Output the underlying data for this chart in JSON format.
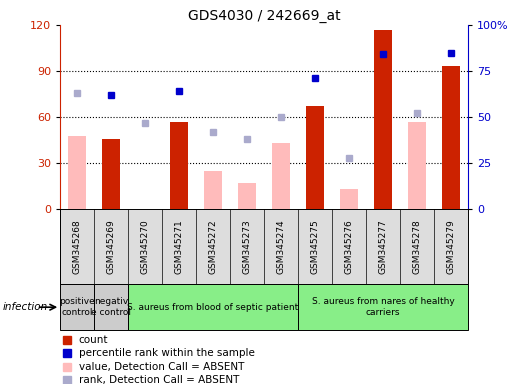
{
  "title": "GDS4030 / 242669_at",
  "samples": [
    "GSM345268",
    "GSM345269",
    "GSM345270",
    "GSM345271",
    "GSM345272",
    "GSM345273",
    "GSM345274",
    "GSM345275",
    "GSM345276",
    "GSM345277",
    "GSM345278",
    "GSM345279"
  ],
  "count_values": [
    null,
    46,
    null,
    57,
    null,
    null,
    null,
    67,
    null,
    117,
    null,
    93
  ],
  "count_absent": [
    48,
    null,
    null,
    null,
    25,
    17,
    43,
    null,
    13,
    null,
    57,
    null
  ],
  "rank_present": [
    null,
    62,
    null,
    64,
    null,
    null,
    null,
    71,
    null,
    84,
    null,
    85
  ],
  "rank_absent": [
    63,
    null,
    47,
    null,
    42,
    38,
    50,
    null,
    28,
    null,
    52,
    null
  ],
  "ylim_left": [
    0,
    120
  ],
  "ylim_right": [
    0,
    100
  ],
  "yticks_left": [
    0,
    30,
    60,
    90,
    120
  ],
  "yticks_right": [
    0,
    25,
    50,
    75,
    100
  ],
  "yticklabels_right": [
    "0",
    "25",
    "50",
    "75",
    "100%"
  ],
  "color_count": "#cc2200",
  "color_rank_present": "#0000cc",
  "color_count_absent": "#ffbbbb",
  "color_rank_absent": "#aaaacc",
  "groups": [
    {
      "label": "positive\ncontrol",
      "start": 0,
      "end": 1,
      "color": "#cccccc"
    },
    {
      "label": "negativ\ne control",
      "start": 1,
      "end": 2,
      "color": "#cccccc"
    },
    {
      "label": "S. aureus from blood of septic patient",
      "start": 2,
      "end": 7,
      "color": "#88ee88"
    },
    {
      "label": "S. aureus from nares of healthy\ncarriers",
      "start": 7,
      "end": 12,
      "color": "#88ee88"
    }
  ],
  "infection_label": "infection",
  "legend_items": [
    {
      "label": "count",
      "color": "#cc2200"
    },
    {
      "label": "percentile rank within the sample",
      "color": "#0000cc"
    },
    {
      "label": "value, Detection Call = ABSENT",
      "color": "#ffbbbb"
    },
    {
      "label": "rank, Detection Call = ABSENT",
      "color": "#aaaacc"
    }
  ]
}
